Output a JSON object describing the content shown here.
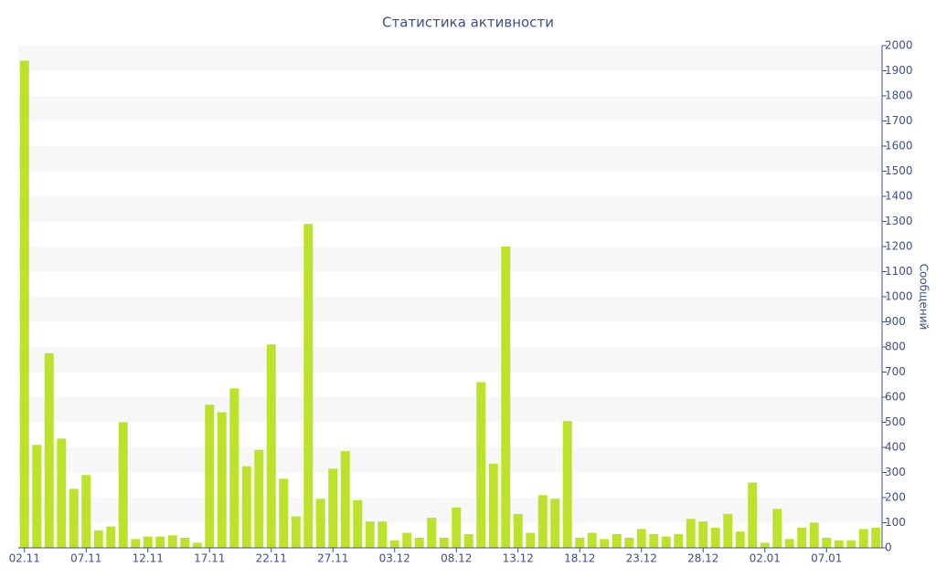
{
  "chart_data": {
    "type": "bar",
    "title": "Статистика активности",
    "y_label": "Сообщений",
    "color": "#bde22c",
    "categories": [
      "02.11",
      null,
      null,
      null,
      null,
      "07.11",
      null,
      null,
      null,
      null,
      "12.11",
      null,
      null,
      null,
      null,
      "17.11",
      null,
      null,
      null,
      null,
      "22.11",
      null,
      null,
      null,
      null,
      "27.11",
      null,
      null,
      null,
      null,
      "03.12",
      null,
      null,
      null,
      null,
      "08.12",
      null,
      null,
      null,
      null,
      "13.12",
      null,
      null,
      null,
      null,
      "18.12",
      null,
      null,
      null,
      null,
      "23.12",
      null,
      null,
      null,
      null,
      "28.12",
      null,
      null,
      null,
      null,
      "02.01",
      null,
      null,
      null,
      null,
      "07.01",
      null,
      null,
      null,
      null
    ],
    "values": [
      1940,
      410,
      775,
      435,
      235,
      290,
      70,
      85,
      500,
      35,
      45,
      45,
      50,
      40,
      20,
      570,
      540,
      635,
      325,
      390,
      810,
      275,
      125,
      1290,
      195,
      315,
      385,
      190,
      105,
      105,
      30,
      60,
      40,
      120,
      40,
      160,
      55,
      660,
      335,
      1200,
      135,
      60,
      210,
      195,
      505,
      40,
      60,
      35,
      55,
      40,
      75,
      55,
      45,
      55,
      115,
      105,
      80,
      135,
      65,
      260,
      20,
      155,
      35,
      80,
      100,
      40,
      30,
      30,
      75,
      80
    ],
    "ylim": [
      0,
      2000
    ],
    "yticks": [
      0,
      100,
      200,
      300,
      400,
      500,
      600,
      700,
      800,
      900,
      1000,
      1100,
      1200,
      1300,
      1400,
      1500,
      1600,
      1700,
      1800,
      1900,
      2000
    ],
    "grid": "alternating-bands"
  }
}
